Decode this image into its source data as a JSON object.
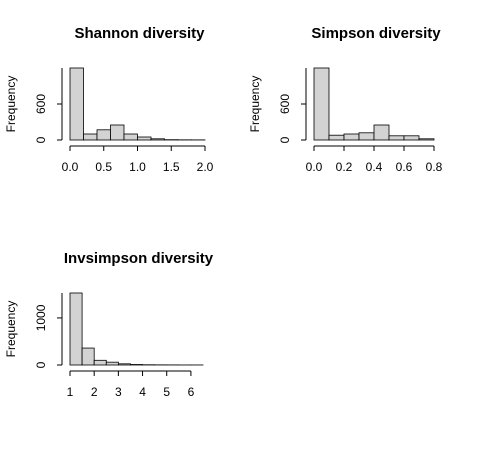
{
  "chart_data": [
    {
      "type": "histogram",
      "title": "Shannon diversity",
      "ylabel": "Frequency",
      "color": "#d3d3d3",
      "bins": [
        0,
        0.2,
        0.4,
        0.6,
        0.8,
        1.0,
        1.2,
        1.4,
        1.6,
        1.8,
        2.0
      ],
      "values": [
        1200,
        100,
        170,
        250,
        100,
        50,
        20,
        5,
        3,
        2
      ],
      "xlim": [
        0,
        2
      ],
      "ylim": [
        0,
        1200
      ],
      "xticks": [
        {
          "value": 0,
          "label": "0.0"
        },
        0.5,
        {
          "value": 1,
          "label": "1.0"
        },
        1.5,
        {
          "value": 2,
          "label": "2.0"
        }
      ],
      "yticks": [
        0,
        600
      ]
    },
    {
      "type": "histogram",
      "title": "Simpson diversity",
      "ylabel": "Frequency",
      "color": "#d3d3d3",
      "bins": [
        0,
        0.1,
        0.2,
        0.3,
        0.4,
        0.5,
        0.6,
        0.7,
        0.8
      ],
      "values": [
        1200,
        80,
        100,
        120,
        250,
        70,
        70,
        20
      ],
      "xlim": [
        0,
        0.8
      ],
      "ylim": [
        0,
        1200
      ],
      "xticks": [
        {
          "value": 0,
          "label": "0.0"
        },
        0.2,
        0.4,
        0.6,
        0.8
      ],
      "yticks": [
        0,
        600
      ]
    },
    {
      "type": "histogram",
      "title": "Invsimpson diversity",
      "ylabel": "Frequency",
      "color": "#d3d3d3",
      "bins": [
        1,
        1.5,
        2,
        2.5,
        3,
        3.5,
        4,
        4.5,
        5,
        5.5,
        6,
        6.5
      ],
      "values": [
        1530,
        360,
        100,
        60,
        25,
        10,
        5,
        3,
        2,
        1,
        1
      ],
      "xlim": [
        1,
        6.5
      ],
      "ylim": [
        0,
        1530
      ],
      "xticks": [
        1,
        2,
        3,
        4,
        5,
        6
      ],
      "yticks": [
        0,
        1000
      ]
    }
  ]
}
